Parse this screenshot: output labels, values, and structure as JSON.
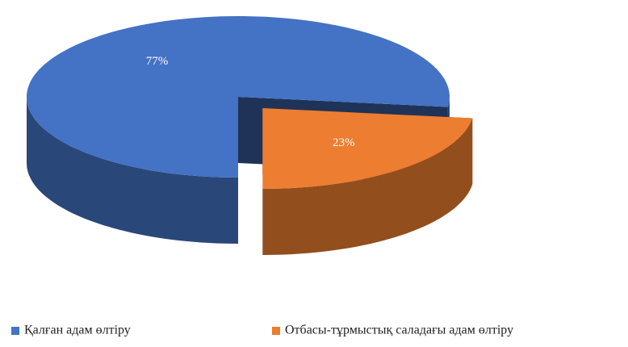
{
  "chart_data": {
    "type": "pie",
    "categories": [
      "Қалған адам өлтіру",
      "Отбасы-тұрмыстық саладағы адам өлтіру"
    ],
    "values": [
      77,
      23
    ],
    "value_labels": [
      "77%",
      "23%"
    ],
    "colors": [
      "#4472c4",
      "#ed7d31"
    ],
    "legend": "bottom"
  }
}
